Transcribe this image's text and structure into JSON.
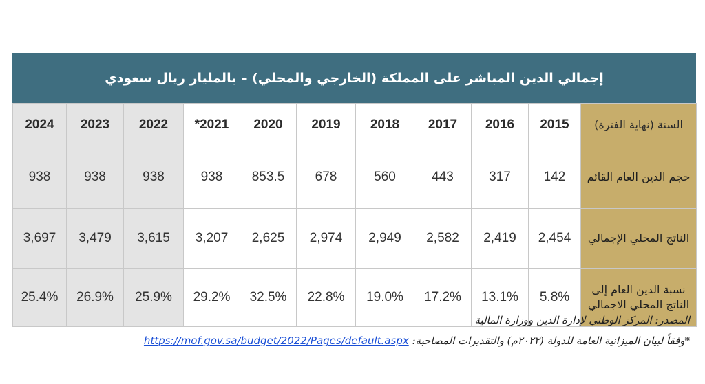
{
  "table": {
    "title": "إجمالي الدين المباشر على المملكة (الخارجي والمحلي) – بالمليار ريال سعودي",
    "header_label": "السنة (نهاية الفترة)",
    "years": [
      "2015",
      "2016",
      "2017",
      "2018",
      "2019",
      "2020",
      "2021*",
      "2022",
      "2023",
      "2024"
    ],
    "rows": [
      {
        "label": "حجم الدين العام القائم",
        "values": [
          "142",
          "317",
          "443",
          "560",
          "678",
          "853.5",
          "938",
          "938",
          "938",
          "938"
        ]
      },
      {
        "label": "الناتج المحلي الإجمالي",
        "values": [
          "2,454",
          "2,419",
          "2,582",
          "2,949",
          "2,974",
          "2,625",
          "3,207",
          "3,615",
          "3,479",
          "3,697"
        ]
      },
      {
        "label": "نسبة الدين العام إلى الناتج المحلي الاجمالي",
        "values": [
          "5.8%",
          "13.1%",
          "17.2%",
          "19.0%",
          "22.8%",
          "32.5%",
          "29.2%",
          "25.9%",
          "26.9%",
          "25.4%"
        ]
      }
    ],
    "colors": {
      "title_bg": "#3f6e80",
      "label_bg": "#c7ad6b",
      "projection_bg": "#e4e4e4"
    }
  },
  "footer": {
    "source": "المصدر: المركز الوطني لإدارة الدين ووزارة المالية",
    "note": "*وفقاً لبيان الميزانية العامة للدولة (٢٠٢٢م) والتقديرات المصاحبة:",
    "link": "https://mof.gov.sa/budget/2022/Pages/default.aspx"
  }
}
